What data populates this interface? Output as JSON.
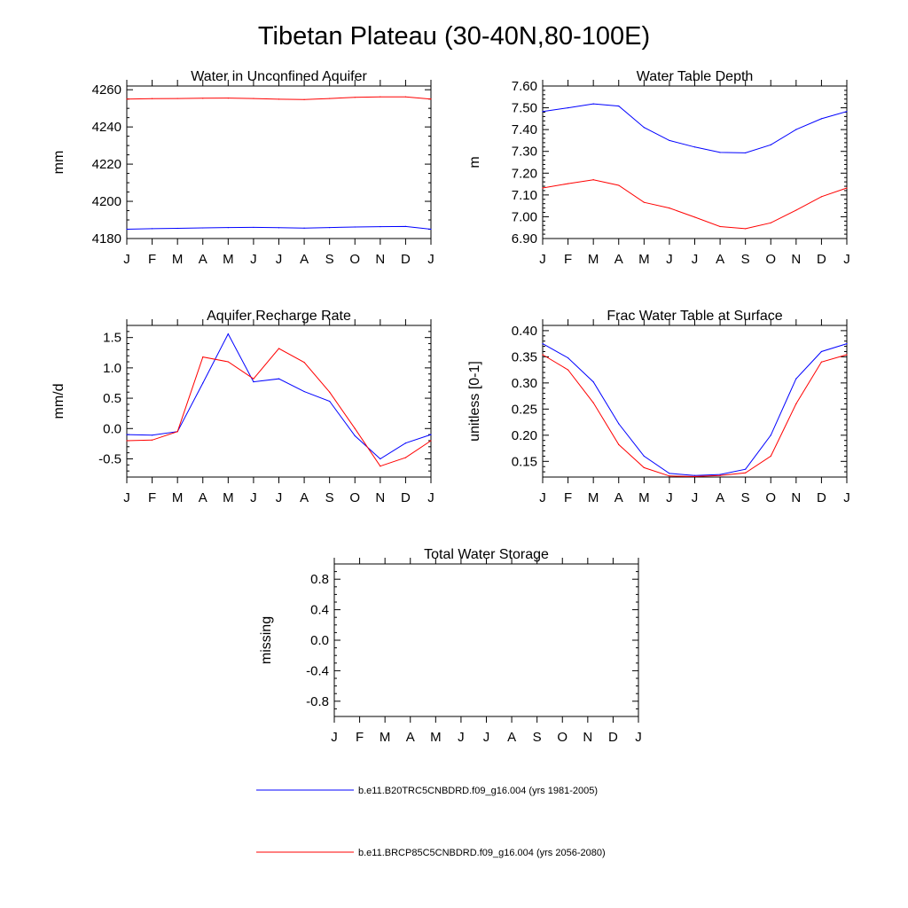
{
  "page_title": "Tibetan Plateau (30-40N,80-100E)",
  "chart_data": [
    {
      "id": "aquifer",
      "type": "line",
      "title": "Water in Unconfined Aquifer",
      "xlabel": "",
      "ylabel": "mm",
      "categories": [
        "J",
        "F",
        "M",
        "A",
        "M",
        "J",
        "J",
        "A",
        "S",
        "O",
        "N",
        "D",
        "J"
      ],
      "ylim": [
        4180,
        4262
      ],
      "yticks": [
        4180,
        4200,
        4220,
        4240,
        4260
      ],
      "ytick_labels": [
        "4180",
        "4200",
        "4220",
        "4240",
        "4260"
      ],
      "y_minor_step": 5,
      "series": [
        {
          "name": "b.e11.B20TRC5CNBDRD.f09_g16.004 (yrs 1981-2005)",
          "color": "#0000ff",
          "values": [
            4185.0,
            4185.3,
            4185.5,
            4185.7,
            4185.9,
            4186.0,
            4185.8,
            4185.6,
            4185.9,
            4186.2,
            4186.4,
            4186.5,
            4185.0
          ]
        },
        {
          "name": "b.e11.BRCP85C5CNBDRD.f09_g16.004 (yrs 2056-2080)",
          "color": "#ff0000",
          "values": [
            4255.0,
            4255.2,
            4255.3,
            4255.4,
            4255.5,
            4255.3,
            4254.9,
            4254.7,
            4255.3,
            4255.9,
            4256.2,
            4256.2,
            4255.0
          ]
        }
      ]
    },
    {
      "id": "wtd",
      "type": "line",
      "title": "Water Table Depth",
      "xlabel": "",
      "ylabel": "m",
      "categories": [
        "J",
        "F",
        "M",
        "A",
        "M",
        "J",
        "J",
        "A",
        "S",
        "O",
        "N",
        "D",
        "J"
      ],
      "ylim": [
        6.9,
        7.6
      ],
      "yticks": [
        6.9,
        7.0,
        7.1,
        7.2,
        7.3,
        7.4,
        7.5,
        7.6
      ],
      "ytick_labels": [
        "6.90",
        "7.00",
        "7.10",
        "7.20",
        "7.30",
        "7.40",
        "7.50",
        "7.60"
      ],
      "y_minor_step": 0.02,
      "series": [
        {
          "name": "b.e11.B20TRC5CNBDRD.f09_g16.004 (yrs 1981-2005)",
          "color": "#0000ff",
          "values": [
            7.483,
            7.5,
            7.518,
            7.508,
            7.41,
            7.35,
            7.32,
            7.295,
            7.293,
            7.33,
            7.4,
            7.45,
            7.483
          ]
        },
        {
          "name": "b.e11.BRCP85C5CNBDRD.f09_g16.004 (yrs 2056-2080)",
          "color": "#ff0000",
          "values": [
            7.132,
            7.152,
            7.17,
            7.144,
            7.066,
            7.04,
            6.998,
            6.955,
            6.945,
            6.972,
            7.03,
            7.092,
            7.132
          ]
        }
      ]
    },
    {
      "id": "recharge",
      "type": "line",
      "title": "Aquifer Recharge Rate",
      "xlabel": "",
      "ylabel": "mm/d",
      "categories": [
        "J",
        "F",
        "M",
        "A",
        "M",
        "J",
        "J",
        "A",
        "S",
        "O",
        "N",
        "D",
        "J"
      ],
      "ylim": [
        -0.8,
        1.7
      ],
      "yticks": [
        -0.5,
        0.0,
        0.5,
        1.0,
        1.5
      ],
      "ytick_labels": [
        "-0.5",
        "0.0",
        "0.5",
        "1.0",
        "1.5"
      ],
      "y_minor_step": 0.1,
      "series": [
        {
          "name": "b.e11.B20TRC5CNBDRD.f09_g16.004 (yrs 1981-2005)",
          "color": "#0000ff",
          "values": [
            -0.1,
            -0.11,
            -0.05,
            0.75,
            1.56,
            0.77,
            0.82,
            0.61,
            0.45,
            -0.12,
            -0.5,
            -0.24,
            -0.1
          ]
        },
        {
          "name": "b.e11.BRCP85C5CNBDRD.f09_g16.004 (yrs 2056-2080)",
          "color": "#ff0000",
          "values": [
            -0.2,
            -0.19,
            -0.05,
            1.18,
            1.1,
            0.82,
            1.32,
            1.09,
            0.6,
            0.0,
            -0.62,
            -0.48,
            -0.2
          ]
        }
      ]
    },
    {
      "id": "fracsat",
      "type": "line",
      "title": "Frac Water Table at Surface",
      "xlabel": "",
      "ylabel": "unitless [0-1]",
      "categories": [
        "J",
        "F",
        "M",
        "A",
        "M",
        "J",
        "J",
        "A",
        "S",
        "O",
        "N",
        "D",
        "J"
      ],
      "ylim": [
        0.12,
        0.41
      ],
      "yticks": [
        0.15,
        0.2,
        0.25,
        0.3,
        0.35,
        0.4
      ],
      "ytick_labels": [
        "0.15",
        "0.20",
        "0.25",
        "0.30",
        "0.35",
        "0.40"
      ],
      "y_minor_step": 0.01,
      "series": [
        {
          "name": "b.e11.B20TRC5CNBDRD.f09_g16.004 (yrs 1981-2005)",
          "color": "#0000ff",
          "values": [
            0.375,
            0.348,
            0.302,
            0.222,
            0.16,
            0.127,
            0.123,
            0.125,
            0.135,
            0.2,
            0.308,
            0.36,
            0.375
          ]
        },
        {
          "name": "b.e11.BRCP85C5CNBDRD.f09_g16.004 (yrs 2056-2080)",
          "color": "#ff0000",
          "values": [
            0.354,
            0.325,
            0.262,
            0.182,
            0.138,
            0.122,
            0.121,
            0.123,
            0.128,
            0.16,
            0.26,
            0.34,
            0.354
          ]
        }
      ]
    },
    {
      "id": "tws",
      "type": "line",
      "title": "Total Water Storage",
      "xlabel": "",
      "ylabel": "missing",
      "categories": [
        "J",
        "F",
        "M",
        "A",
        "M",
        "J",
        "J",
        "A",
        "S",
        "O",
        "N",
        "D",
        "J"
      ],
      "ylim": [
        -1.0,
        1.0
      ],
      "yticks": [
        -0.8,
        -0.4,
        0.0,
        0.4,
        0.8
      ],
      "ytick_labels": [
        "-0.8",
        "-0.4",
        "0.0",
        "0.4",
        "0.8"
      ],
      "y_minor_step": 0.1,
      "series": []
    }
  ],
  "legend": [
    {
      "label": "b.e11.B20TRC5CNBDRD.f09_g16.004 (yrs 1981-2005)",
      "color": "#0000ff"
    },
    {
      "label": "b.e11.BRCP85C5CNBDRD.f09_g16.004 (yrs 2056-2080)",
      "color": "#ff0000"
    }
  ]
}
